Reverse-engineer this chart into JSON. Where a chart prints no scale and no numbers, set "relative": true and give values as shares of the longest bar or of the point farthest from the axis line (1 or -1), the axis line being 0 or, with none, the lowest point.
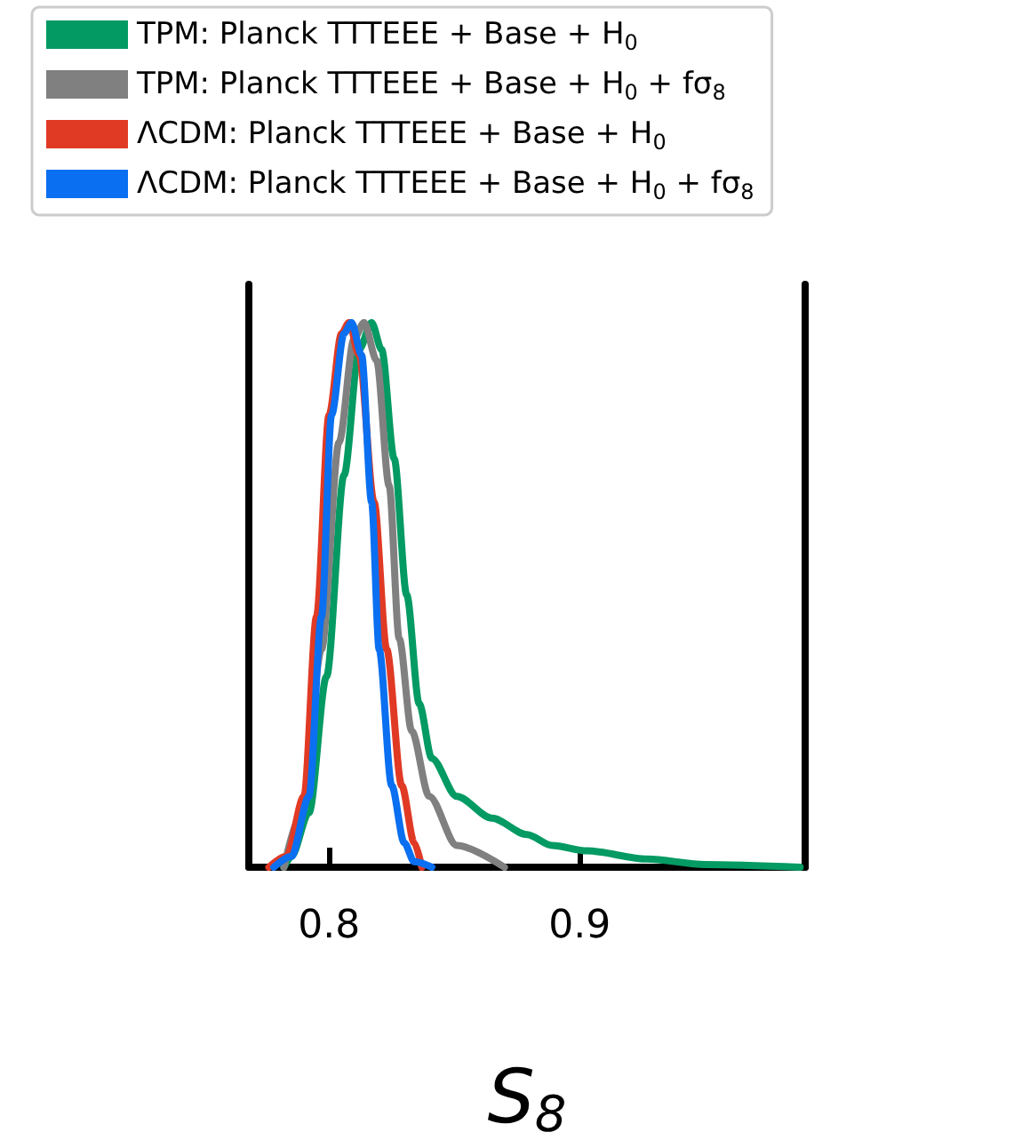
{
  "chart_data": {
    "type": "line",
    "xlabel": "S$_{8}$",
    "relative": true,
    "xlim": [
      0.768,
      0.99
    ],
    "xticks": [
      0.8,
      0.9
    ],
    "grid": false,
    "legend": "top",
    "marker": "none",
    "line_style": "solid",
    "series": [
      {
        "name": "TPM: Planck TTTEEE + Base + H$_{0}$",
        "color": "#049a63",
        "x": [
          0.782,
          0.785,
          0.792,
          0.799,
          0.806,
          0.812,
          0.817,
          0.821,
          0.826,
          0.831,
          0.836,
          0.841,
          0.851,
          0.865,
          0.879,
          0.889,
          0.903,
          0.927,
          0.95,
          0.988
        ],
        "values": [
          0,
          0.02,
          0.1,
          0.35,
          0.72,
          0.95,
          1,
          0.95,
          0.75,
          0.5,
          0.3,
          0.2,
          0.13,
          0.09,
          0.06,
          0.04,
          0.03,
          0.015,
          0.005,
          0
        ]
      },
      {
        "name": "TPM: Planck TTTEEE + Base + H$_{0}$ + fσ$_{8}$",
        "color": "#808080",
        "x": [
          0.782,
          0.789,
          0.797,
          0.804,
          0.81,
          0.814,
          0.819,
          0.824,
          0.828,
          0.833,
          0.84,
          0.851,
          0.87
        ],
        "values": [
          0,
          0.1,
          0.4,
          0.78,
          0.97,
          1,
          0.93,
          0.7,
          0.42,
          0.25,
          0.13,
          0.04,
          0
        ]
      },
      {
        "name": "ΛCDM: Planck TTTEEE + Base + H$_{0}$",
        "color": "#e03a25",
        "x": [
          0.776,
          0.783,
          0.79,
          0.795,
          0.8,
          0.805,
          0.808,
          0.812,
          0.818,
          0.823,
          0.829,
          0.834,
          0.837
        ],
        "values": [
          0,
          0.02,
          0.13,
          0.46,
          0.83,
          0.98,
          1,
          0.94,
          0.67,
          0.4,
          0.15,
          0.045,
          0
        ]
      },
      {
        "name": "ΛCDM: Planck TTTEEE + Base + H$_{0}$ + fσ$_{8}$",
        "color": "#0a6ff0",
        "x": [
          0.778,
          0.785,
          0.792,
          0.797,
          0.801,
          0.806,
          0.809,
          0.813,
          0.817,
          0.82,
          0.825,
          0.83,
          0.834,
          0.841
        ],
        "values": [
          0,
          0.02,
          0.13,
          0.46,
          0.83,
          0.98,
          1,
          0.94,
          0.67,
          0.4,
          0.15,
          0.045,
          0.01,
          0
        ]
      }
    ]
  }
}
